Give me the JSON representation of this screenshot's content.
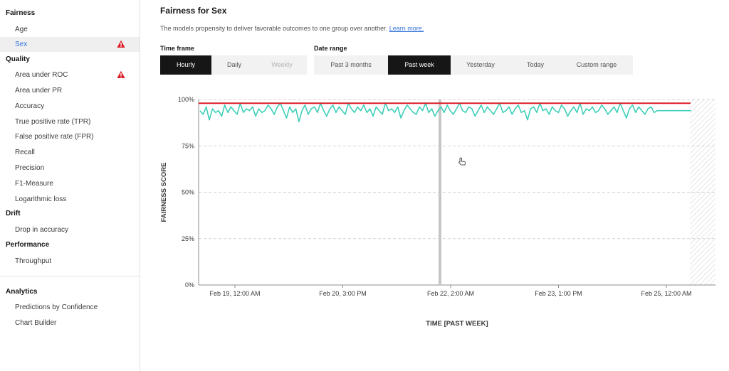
{
  "sidebar": {
    "sections": [
      {
        "heading": "Fairness",
        "items": [
          {
            "label": "Age",
            "active": false,
            "warning": false
          },
          {
            "label": "Sex",
            "active": true,
            "warning": true
          }
        ]
      },
      {
        "heading": "Quality",
        "items": [
          {
            "label": "Area under ROC",
            "active": false,
            "warning": true
          },
          {
            "label": "Area under PR",
            "active": false,
            "warning": false
          },
          {
            "label": "Accuracy",
            "active": false,
            "warning": false
          },
          {
            "label": "True positive rate (TPR)",
            "active": false,
            "warning": false
          },
          {
            "label": "False positive rate (FPR)",
            "active": false,
            "warning": false
          },
          {
            "label": "Recall",
            "active": false,
            "warning": false
          },
          {
            "label": "Precision",
            "active": false,
            "warning": false
          },
          {
            "label": "F1-Measure",
            "active": false,
            "warning": false
          },
          {
            "label": "Logarithmic loss",
            "active": false,
            "warning": false
          }
        ]
      },
      {
        "heading": "Drift",
        "items": [
          {
            "label": "Drop in accuracy",
            "active": false,
            "warning": false
          }
        ]
      },
      {
        "heading": "Performance",
        "items": [
          {
            "label": "Throughput",
            "active": false,
            "warning": false
          }
        ]
      },
      {
        "heading": "Analytics",
        "items": [
          {
            "label": "Predictions by Confidence",
            "active": false,
            "warning": false
          },
          {
            "label": "Chart Builder",
            "active": false,
            "warning": false
          }
        ]
      }
    ],
    "warning_icon": "warning-triangle-icon",
    "accent_color": "#2f6fdb",
    "warning_color": "#da1e28"
  },
  "main": {
    "title": "Fairness for Sex",
    "description": "The models propensity to deliver favorable outcomes to one group over another.",
    "learn_more": "Learn more.",
    "time_frame": {
      "label": "Time frame",
      "options": [
        {
          "label": "Hourly",
          "state": "selected"
        },
        {
          "label": "Daily",
          "state": "normal"
        },
        {
          "label": "Weekly",
          "state": "disabled"
        }
      ]
    },
    "date_range": {
      "label": "Date range",
      "options": [
        {
          "label": "Past 3 months",
          "state": "normal"
        },
        {
          "label": "Past week",
          "state": "selected"
        },
        {
          "label": "Yesterday",
          "state": "normal"
        },
        {
          "label": "Today",
          "state": "normal"
        },
        {
          "label": "Custom range",
          "state": "normal"
        }
      ]
    }
  },
  "chart_data": {
    "type": "line",
    "title": "",
    "xlabel": "TIME [PAST WEEK]",
    "ylabel": "FAIRNESS SCORE",
    "ylim": [
      0,
      100
    ],
    "y_ticks": [
      "0%",
      "25%",
      "50%",
      "75%",
      "100%"
    ],
    "x_ticks": [
      "Feb 19, 12:00 AM",
      "Feb 20, 3:00 PM",
      "Feb 22, 2:00 AM",
      "Feb 23, 1:00 PM",
      "Feb 25, 12:00 AM"
    ],
    "threshold": 98,
    "threshold_color": "#da1e28",
    "series_color": "#3ecfb9",
    "grid": "horizontal dashed",
    "series": [
      {
        "values": [
          94,
          92,
          96,
          89,
          95,
          93,
          94,
          91,
          97,
          93,
          96,
          94,
          92,
          98,
          93,
          95,
          94,
          96,
          91,
          95,
          93,
          94,
          97,
          95,
          92,
          96,
          98,
          94,
          90,
          96,
          93,
          95,
          88,
          94,
          97,
          92,
          95,
          96,
          93,
          98,
          94,
          91,
          95,
          97,
          93,
          96,
          94,
          92,
          98,
          95,
          93,
          96,
          94,
          97,
          93,
          95,
          91,
          96,
          94,
          92,
          98,
          94,
          95,
          93,
          96,
          90,
          94,
          97,
          95,
          93,
          92,
          96,
          94,
          98,
          93,
          95,
          91,
          94,
          96,
          93,
          97,
          94,
          92,
          95,
          98,
          94,
          93,
          96,
          95,
          91,
          94,
          97,
          93,
          96,
          94,
          92,
          95,
          98,
          93,
          94,
          96,
          92,
          95,
          97,
          93,
          94,
          89,
          95,
          96,
          93,
          98,
          94,
          95,
          92,
          96,
          94,
          93,
          97,
          95,
          91,
          94,
          96,
          93,
          98,
          92,
          95,
          94,
          96,
          93,
          94,
          97,
          95,
          92,
          94,
          96,
          93,
          98,
          94,
          90,
          95,
          97,
          93,
          96,
          94,
          92,
          95,
          96,
          93,
          94,
          94,
          94,
          94,
          94,
          94,
          94,
          94,
          94,
          94,
          94,
          94
        ]
      }
    ]
  }
}
